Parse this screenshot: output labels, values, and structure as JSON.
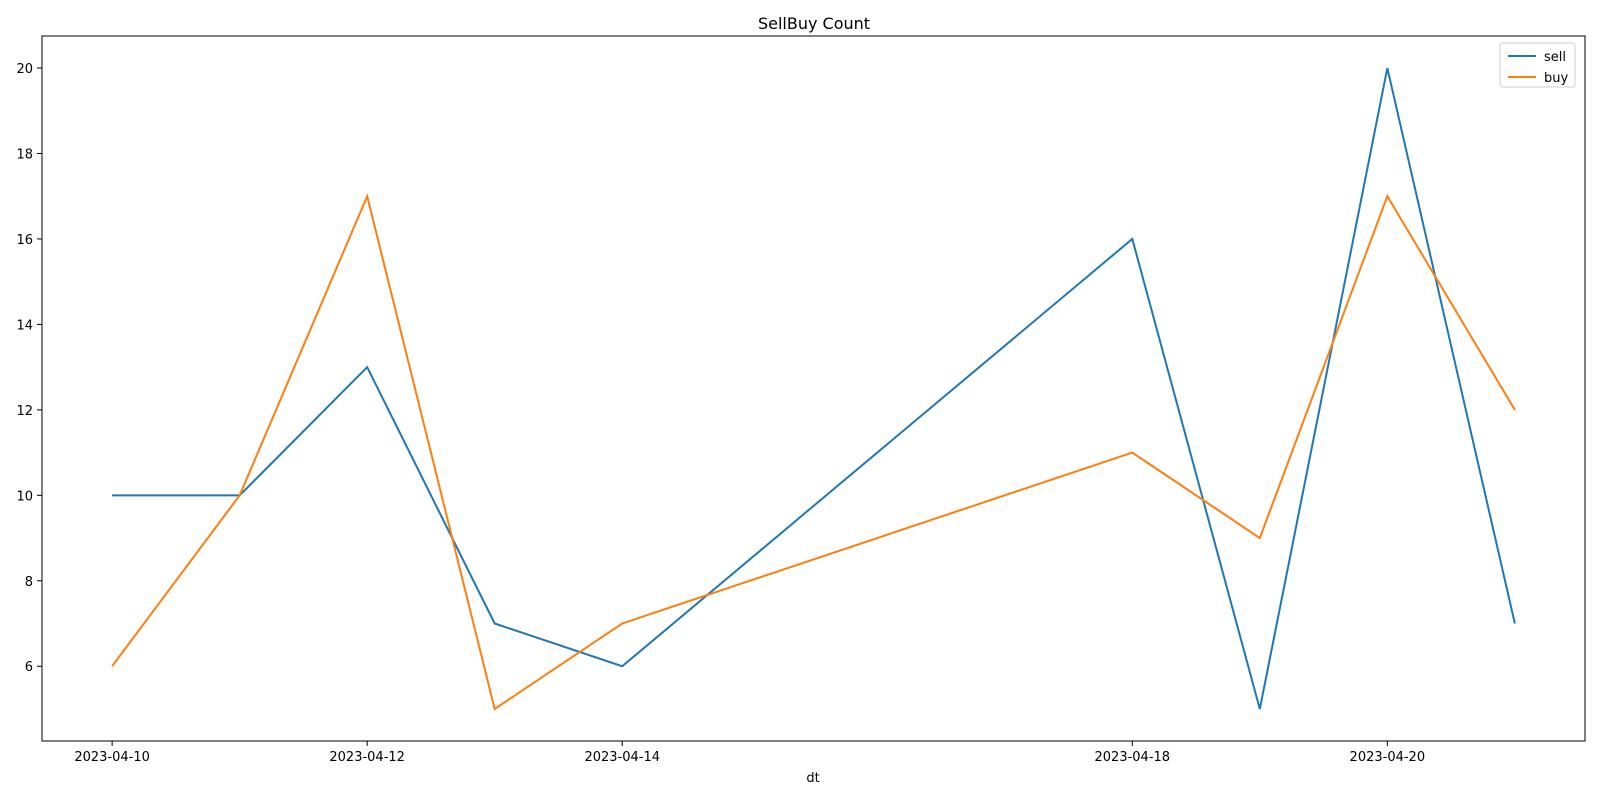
{
  "chart_data": {
    "type": "line",
    "title": "SellBuy Count",
    "xlabel": "dt",
    "ylabel": "",
    "x": [
      "2023-04-10",
      "2023-04-11",
      "2023-04-12",
      "2023-04-13",
      "2023-04-14",
      "2023-04-18",
      "2023-04-19",
      "2023-04-20",
      "2023-04-21"
    ],
    "x_ticks": [
      "2023-04-10",
      "2023-04-12",
      "2023-04-14",
      "2023-04-18",
      "2023-04-20"
    ],
    "y_ticks": [
      6,
      8,
      10,
      12,
      14,
      16,
      18,
      20
    ],
    "ylim": [
      4.25,
      20.75
    ],
    "grid": false,
    "legend_position": "top-right",
    "series": [
      {
        "name": "sell",
        "color": "#1f77b4",
        "values": [
          10,
          10,
          13,
          7,
          6,
          16,
          5,
          20,
          7
        ]
      },
      {
        "name": "buy",
        "color": "#ff7f0e",
        "values": [
          6,
          10,
          17,
          5,
          7,
          11,
          9,
          17,
          12
        ]
      }
    ]
  }
}
